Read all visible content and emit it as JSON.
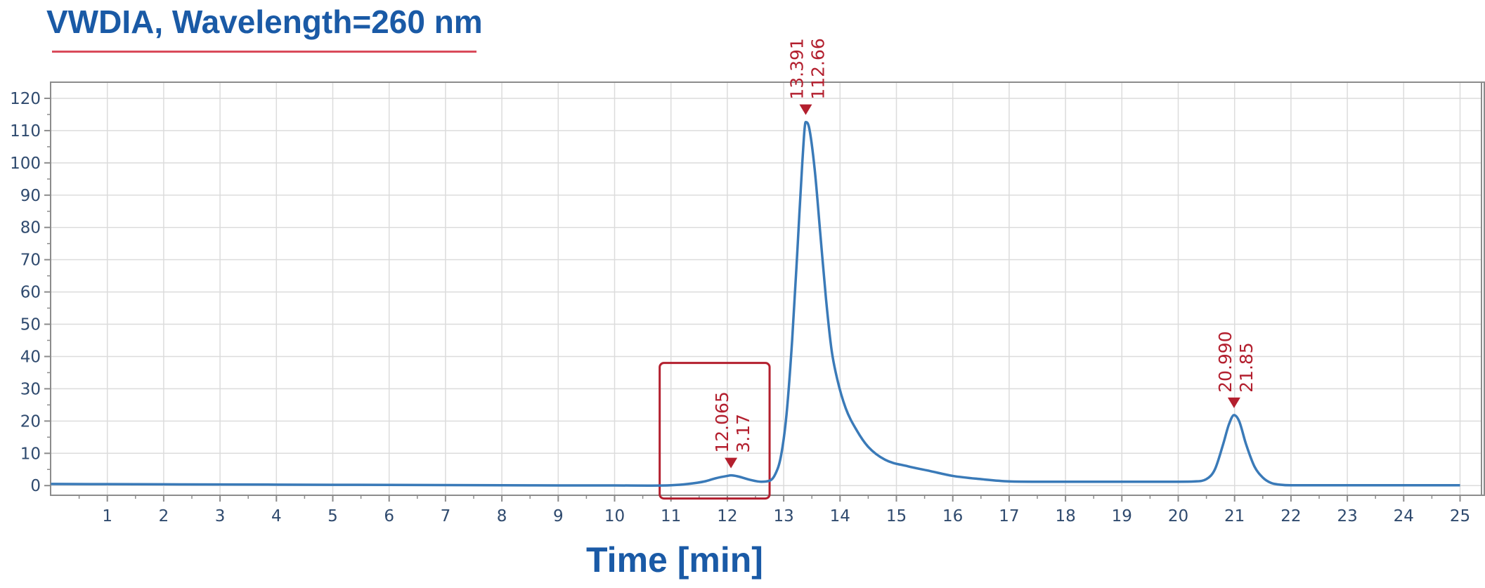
{
  "chart_data": {
    "type": "line",
    "title": "VWDIA, Wavelength=260 nm",
    "xlabel": "Time [min]",
    "ylabel": "",
    "xlim": [
      0,
      25.4
    ],
    "ylim": [
      -3,
      125
    ],
    "x_ticks": [
      1,
      2,
      3,
      4,
      5,
      6,
      7,
      8,
      9,
      10,
      11,
      12,
      13,
      14,
      15,
      16,
      17,
      18,
      19,
      20,
      21,
      22,
      23,
      24,
      25
    ],
    "y_ticks": [
      0,
      10,
      20,
      30,
      40,
      50,
      60,
      70,
      80,
      90,
      100,
      110,
      120
    ],
    "grid": true,
    "series": [
      {
        "color": "#3a7ab8",
        "x": [
          0,
          2,
          4,
          6,
          8,
          9,
          10,
          10.6,
          11,
          11.3,
          11.6,
          11.8,
          12.0,
          12.065,
          12.2,
          12.4,
          12.6,
          12.75,
          12.85,
          12.95,
          13.05,
          13.15,
          13.25,
          13.33,
          13.391,
          13.45,
          13.55,
          13.65,
          13.75,
          13.85,
          13.95,
          14.1,
          14.3,
          14.5,
          14.8,
          15.2,
          15.6,
          16,
          16.5,
          17,
          17.5,
          18,
          18.5,
          19,
          19.5,
          20,
          20.3,
          20.5,
          20.65,
          20.8,
          20.9,
          20.99,
          21.08,
          21.2,
          21.35,
          21.5,
          21.65,
          21.8,
          22,
          23,
          24,
          25
        ],
        "y": [
          0.5,
          0.4,
          0.3,
          0.2,
          0.1,
          0.05,
          0.05,
          0,
          0.1,
          0.5,
          1.3,
          2.3,
          3.0,
          3.17,
          2.8,
          1.8,
          1.2,
          1.5,
          3.5,
          9,
          22,
          45,
          75,
          100,
          112.66,
          111,
          98,
          78,
          58,
          42,
          33,
          24,
          17,
          12,
          8,
          6,
          4.5,
          3,
          2,
          1.3,
          1.2,
          1.2,
          1.2,
          1.2,
          1.2,
          1.2,
          1.3,
          2,
          5,
          13,
          19,
          21.85,
          20,
          13,
          6,
          2.5,
          0.8,
          0.3,
          0.1,
          0.1,
          0.1,
          0.1
        ]
      }
    ],
    "peaks": [
      {
        "time": "12.065",
        "value": "3.17",
        "x": 12.065,
        "y": 3.17
      },
      {
        "time": "13.391",
        "value": "112.66",
        "x": 13.391,
        "y": 112.66
      },
      {
        "time": "20.990",
        "value": "21.85",
        "x": 20.99,
        "y": 21.85
      }
    ],
    "highlight_box": {
      "x0": 10.8,
      "x1": 12.75,
      "y0": -4,
      "y1": 38,
      "color": "#b31f2e"
    },
    "colors": {
      "axis": "#8c8c8c",
      "grid": "#dcdcdc",
      "trace": "#3a7ab8",
      "annotation": "#b31f2e",
      "title": "#1a5aa6"
    }
  }
}
